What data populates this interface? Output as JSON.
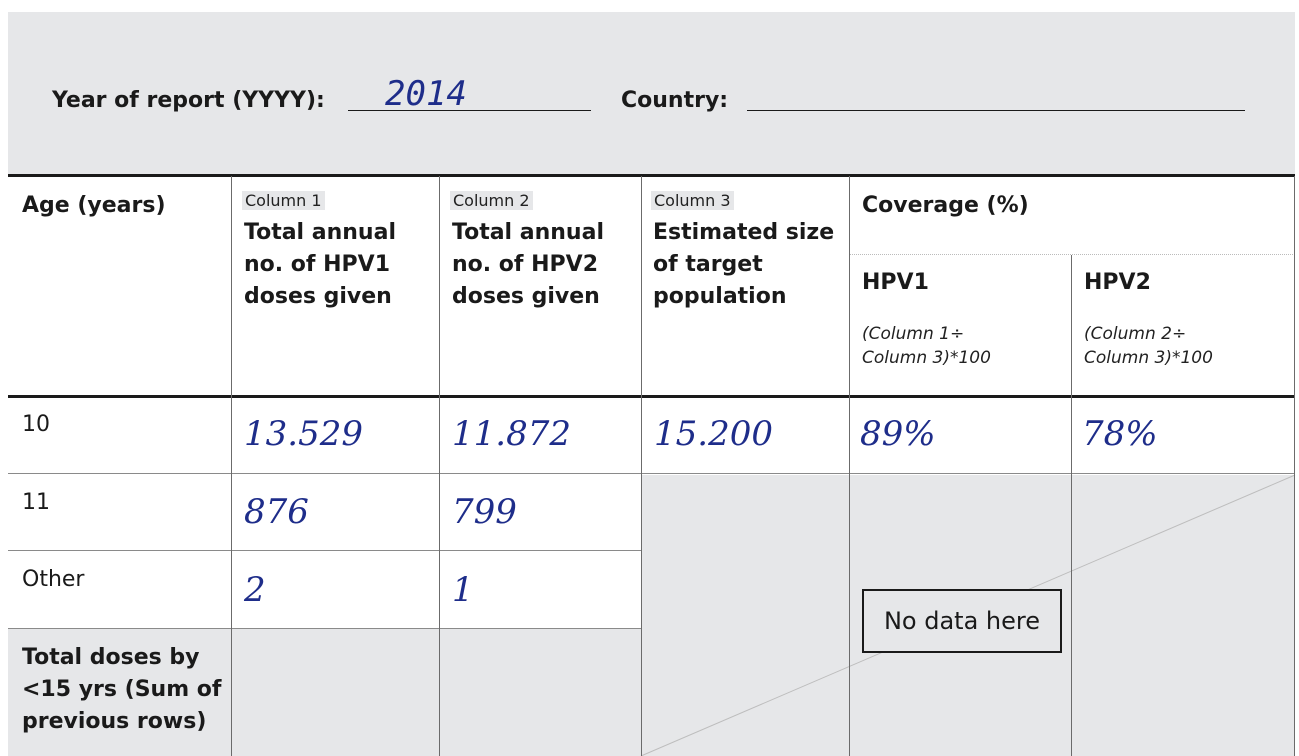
{
  "header": {
    "year_label": "Year of report (YYYY):",
    "year_value": "2014",
    "country_label": "Country:",
    "country_value": ""
  },
  "table": {
    "col_age": "Age (years)",
    "col1_chip": "Column 1",
    "col1_title": "Total annual no. of HPV1 doses given",
    "col2_chip": "Column 2",
    "col2_title": "Total annual no. of HPV2 doses given",
    "col3_chip": "Column 3",
    "col3_title": "Estimated size of target population",
    "coverage_title": "Coverage (%)",
    "hpv1_title": "HPV1",
    "hpv1_formula": "(Column 1÷ Column 3)*100",
    "hpv2_title": "HPV2",
    "hpv2_formula": "(Column 2÷ Column 3)*100",
    "rows": [
      {
        "age": "10",
        "c1": "13.529",
        "c2": "11.872",
        "c3": "15.200",
        "hpv1": "89%",
        "hpv2": "78%"
      },
      {
        "age": "11",
        "c1": "876",
        "c2": "799"
      },
      {
        "age": "Other",
        "c1": "2",
        "c2": "1"
      },
      {
        "age": "Total doses by <15 yrs (Sum of previous rows)"
      }
    ],
    "no_data_label": "No data here"
  }
}
